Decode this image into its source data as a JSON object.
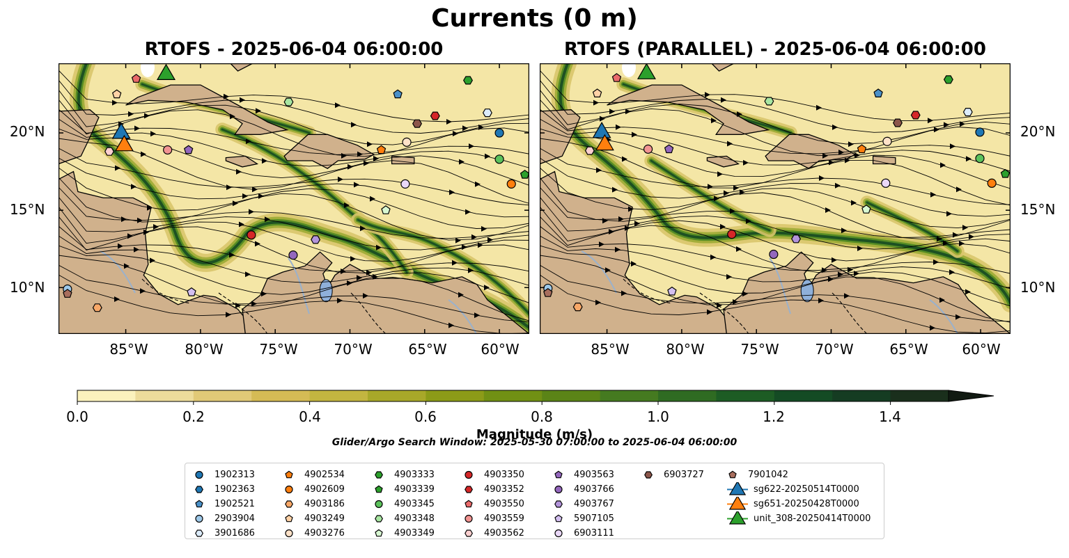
{
  "title": "Currents (0 m)",
  "panels": [
    {
      "title": "RTOFS - 2025-06-04 06:00:00"
    },
    {
      "title": "RTOFS (PARALLEL) - 2025-06-04 06:00:00"
    }
  ],
  "map_extent": {
    "lon": [
      -89.5,
      -58
    ],
    "lat": [
      7,
      24.5
    ]
  },
  "lat_ticks": [
    "20°N",
    "15°N",
    "10°N"
  ],
  "lon_ticks": [
    "85°W",
    "80°W",
    "75°W",
    "70°W",
    "65°W",
    "60°W"
  ],
  "colorbar": {
    "label": "Magnitude (m/s)",
    "ticks": [
      "0.0",
      "0.2",
      "0.4",
      "0.6",
      "0.8",
      "1.0",
      "1.2",
      "1.4"
    ],
    "range": [
      0,
      1.5
    ],
    "extend": "max",
    "colors": [
      "#fbf2bd",
      "#eddc9b",
      "#e1c977",
      "#d5bb55",
      "#c3b540",
      "#a8a829",
      "#8c9b18",
      "#719014",
      "#5b8417",
      "#457a20",
      "#2f6b22",
      "#1d5c24",
      "#144b24",
      "#153c22",
      "#1a2f1c"
    ]
  },
  "caption": "Glider/Argo Search Window: 2025-05-30 07:00:00 to 2025-06-04 06:00:00",
  "legend": [
    {
      "label": "1902313",
      "marker": "circle",
      "color": "#1f77b4"
    },
    {
      "label": "1902363",
      "marker": "hexagon",
      "color": "#1f77b4"
    },
    {
      "label": "1902521",
      "marker": "pentagon",
      "color": "#4a90c8"
    },
    {
      "label": "2903904",
      "marker": "circle",
      "color": "#9ec8e8"
    },
    {
      "label": "3901686",
      "marker": "hexagon",
      "color": "#dcecfb"
    },
    {
      "label": "4902534",
      "marker": "pentagon",
      "color": "#ff7f0e"
    },
    {
      "label": "4902609",
      "marker": "circle",
      "color": "#ff7f0e"
    },
    {
      "label": "4903186",
      "marker": "hexagon",
      "color": "#f8a868"
    },
    {
      "label": "4903249",
      "marker": "pentagon",
      "color": "#ffd2a6"
    },
    {
      "label": "4903276",
      "marker": "circle",
      "color": "#ffe2c8"
    },
    {
      "label": "4903333",
      "marker": "hexagon",
      "color": "#2ca02c"
    },
    {
      "label": "4903339",
      "marker": "pentagon",
      "color": "#2ca02c"
    },
    {
      "label": "4903345",
      "marker": "circle",
      "color": "#5cc25c"
    },
    {
      "label": "4903348",
      "marker": "hexagon",
      "color": "#a8e6a2"
    },
    {
      "label": "4903349",
      "marker": "pentagon",
      "color": "#d8f8d2"
    },
    {
      "label": "4903350",
      "marker": "circle",
      "color": "#d62728"
    },
    {
      "label": "4903352",
      "marker": "hexagon",
      "color": "#d62728"
    },
    {
      "label": "4903550",
      "marker": "pentagon",
      "color": "#ea6a6a"
    },
    {
      "label": "4903559",
      "marker": "circle",
      "color": "#f29492"
    },
    {
      "label": "4903562",
      "marker": "hexagon",
      "color": "#fcd0d0"
    },
    {
      "label": "4903563",
      "marker": "pentagon",
      "color": "#9467bd"
    },
    {
      "label": "4903766",
      "marker": "circle",
      "color": "#9467bd"
    },
    {
      "label": "4903767",
      "marker": "hexagon",
      "color": "#b394db"
    },
    {
      "label": "5907105",
      "marker": "pentagon",
      "color": "#d3bff0"
    },
    {
      "label": "6903111",
      "marker": "circle",
      "color": "#ead8f8"
    },
    {
      "label": "6903727",
      "marker": "hexagon",
      "color": "#8c564b"
    },
    {
      "label": "7901042",
      "marker": "pentagon",
      "color": "#a86e5e"
    },
    {
      "label": "sg622-20250514T0000",
      "marker": "triangle",
      "color": "#1f77b4"
    },
    {
      "label": "sg651-20250428T0000",
      "marker": "triangle",
      "color": "#ff7f0e"
    },
    {
      "label": "unit_308-20250414T0000",
      "marker": "triangle",
      "color": "#2ca02c"
    }
  ],
  "floats_panel1": [
    {
      "id": "1902313",
      "lon": -60,
      "lat": 20,
      "marker": "circle",
      "color": "#1f77b4"
    },
    {
      "id": "1902521",
      "lon": -66.8,
      "lat": 22.5,
      "marker": "pentagon",
      "color": "#4a90c8"
    },
    {
      "id": "2903904",
      "lon": -88.9,
      "lat": 9.9,
      "marker": "circle",
      "color": "#9ec8e8"
    },
    {
      "id": "3901686",
      "lon": -60.8,
      "lat": 21.3,
      "marker": "hexagon",
      "color": "#dcecfb"
    },
    {
      "id": "4902534",
      "lon": -67.9,
      "lat": 18.9,
      "marker": "pentagon",
      "color": "#ff7f0e"
    },
    {
      "id": "4902609",
      "lon": -59.2,
      "lat": 16.7,
      "marker": "circle",
      "color": "#ff7f0e"
    },
    {
      "id": "4903186",
      "lon": -86.9,
      "lat": 8.7,
      "marker": "hexagon",
      "color": "#f8a868"
    },
    {
      "id": "4903249",
      "lon": -85.6,
      "lat": 22.5,
      "marker": "pentagon",
      "color": "#ffd2a6"
    },
    {
      "id": "4903276",
      "lon": -66.2,
      "lat": 19.4,
      "marker": "circle",
      "color": "#ffe2c8"
    },
    {
      "id": "4903333",
      "lon": -62.1,
      "lat": 23.4,
      "marker": "hexagon",
      "color": "#2ca02c"
    },
    {
      "id": "4903339",
      "lon": -58.3,
      "lat": 17.3,
      "marker": "pentagon",
      "color": "#2ca02c"
    },
    {
      "id": "4903345",
      "lon": -60,
      "lat": 18.3,
      "marker": "circle",
      "color": "#5cc25c"
    },
    {
      "id": "4903348",
      "lon": -74.1,
      "lat": 22,
      "marker": "hexagon",
      "color": "#a8e6a2"
    },
    {
      "id": "4903349",
      "lon": -67.6,
      "lat": 15,
      "marker": "pentagon",
      "color": "#d8f8d2"
    },
    {
      "id": "4903350",
      "lon": -76.6,
      "lat": 13.4,
      "marker": "circle",
      "color": "#d62728"
    },
    {
      "id": "4903352",
      "lon": -64.3,
      "lat": 21.1,
      "marker": "hexagon",
      "color": "#d62728"
    },
    {
      "id": "4903550",
      "lon": -84.3,
      "lat": 23.5,
      "marker": "pentagon",
      "color": "#ea6a6a"
    },
    {
      "id": "4903559",
      "lon": -82.2,
      "lat": 18.9,
      "marker": "circle",
      "color": "#f29492"
    },
    {
      "id": "4903562",
      "lon": -86.1,
      "lat": 18.8,
      "marker": "hexagon",
      "color": "#fcd0d0"
    },
    {
      "id": "4903563",
      "lon": -80.8,
      "lat": 18.9,
      "marker": "pentagon",
      "color": "#9467bd"
    },
    {
      "id": "4903766",
      "lon": -73.8,
      "lat": 12.1,
      "marker": "circle",
      "color": "#9467bd"
    },
    {
      "id": "4903767",
      "lon": -72.3,
      "lat": 13.1,
      "marker": "hexagon",
      "color": "#b394db"
    },
    {
      "id": "5907105",
      "lon": -80.6,
      "lat": 9.7,
      "marker": "pentagon",
      "color": "#d3bff0"
    },
    {
      "id": "6903111",
      "lon": -66.3,
      "lat": 16.7,
      "marker": "circle",
      "color": "#ead8f8"
    },
    {
      "id": "6903727",
      "lon": -65.5,
      "lat": 20.6,
      "marker": "hexagon",
      "color": "#8c564b"
    },
    {
      "id": "7901042",
      "lon": -88.9,
      "lat": 9.6,
      "marker": "pentagon",
      "color": "#a86e5e"
    },
    {
      "id": "sg622-20250514T0000",
      "lon": -85.3,
      "lat": 20.1,
      "marker": "triangle",
      "color": "#1f77b4"
    },
    {
      "id": "sg651-20250428T0000",
      "lon": -85.1,
      "lat": 19.3,
      "marker": "triangle",
      "color": "#ff7f0e"
    },
    {
      "id": "unit_308-20250414T0000",
      "lon": -82.3,
      "lat": 23.9,
      "marker": "triangle",
      "color": "#2ca02c"
    }
  ]
}
